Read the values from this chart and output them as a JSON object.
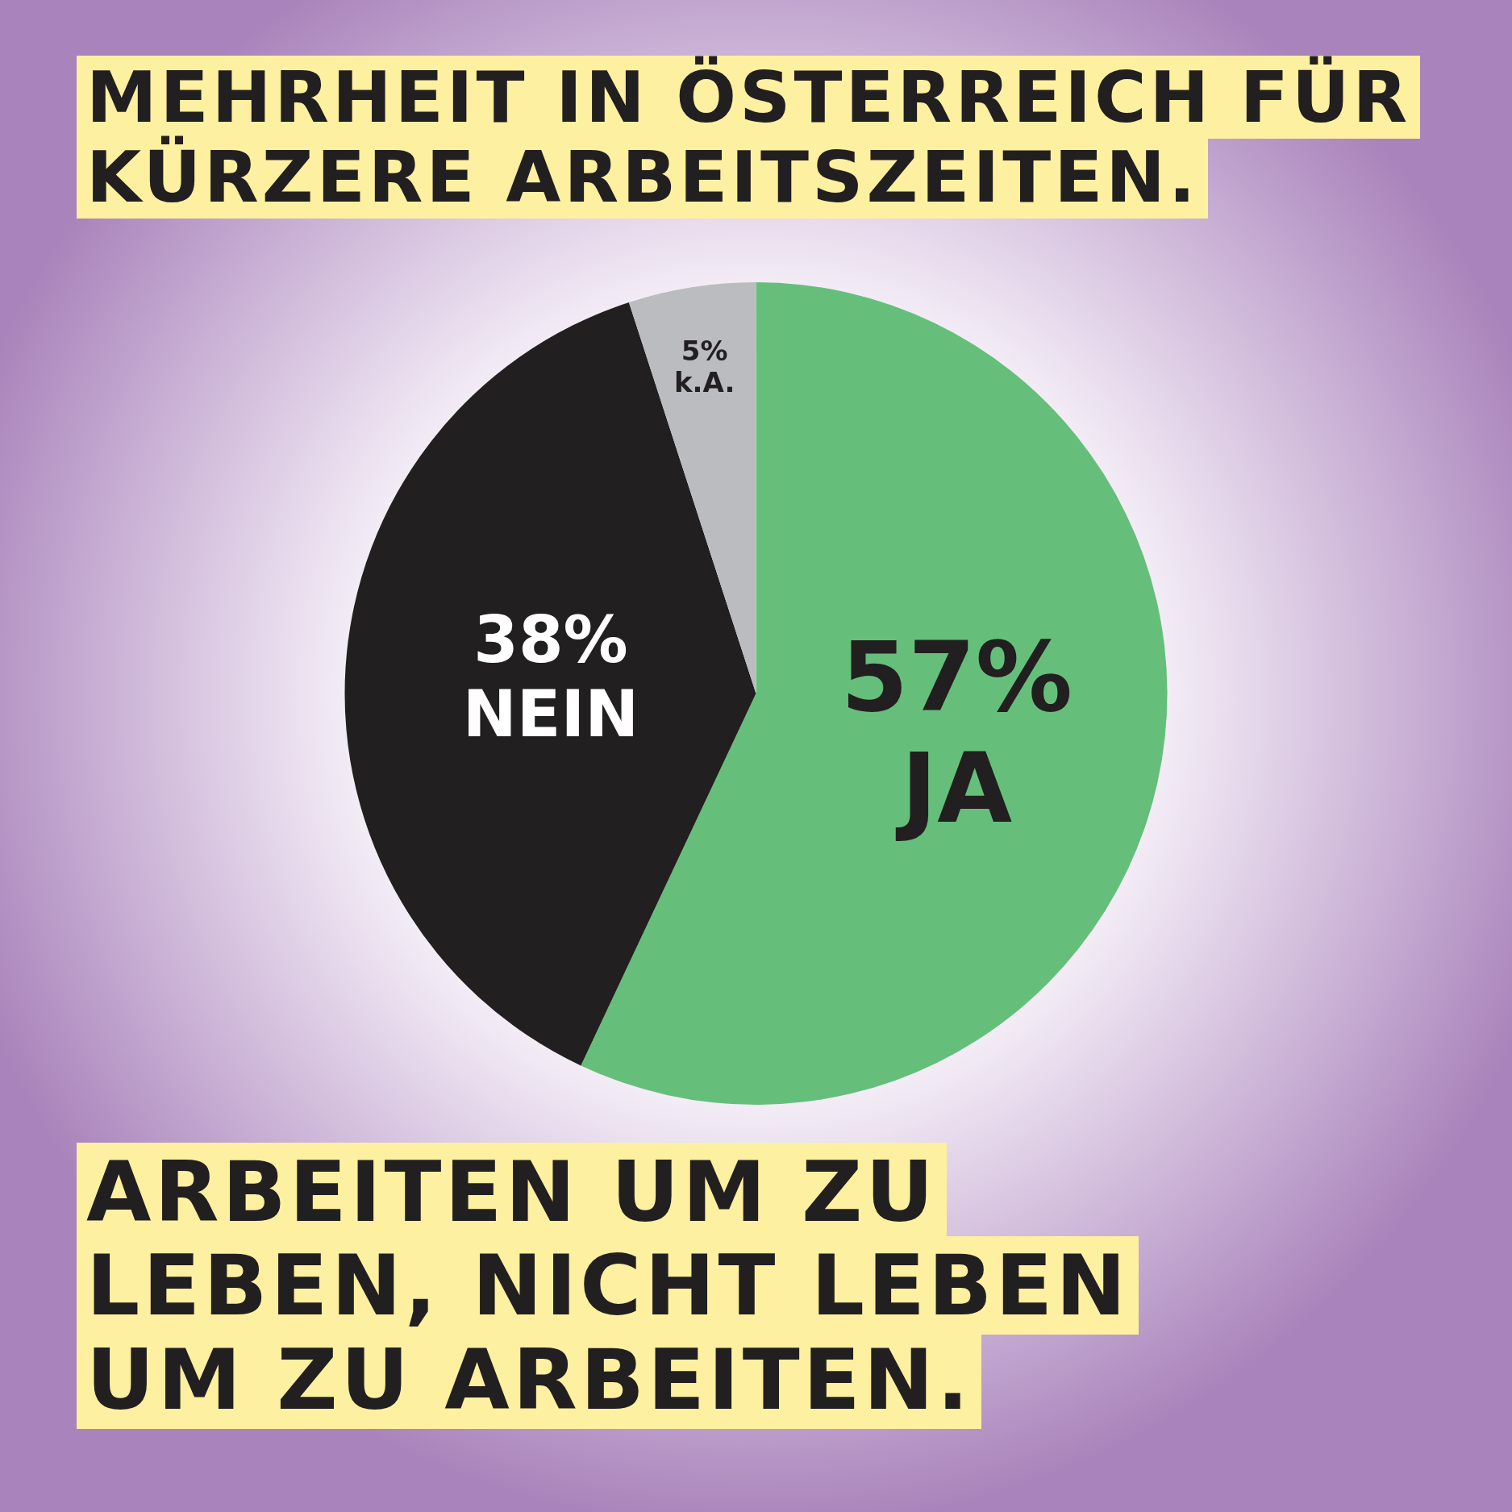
{
  "chart_data": {
    "type": "pie",
    "title": "MEHRHEIT IN ÖSTERREICH FÜR KÜRZERE ARBEITSZEITEN.",
    "categories": [
      "JA",
      "NEIN",
      "k.A."
    ],
    "values": [
      57,
      38,
      5
    ],
    "value_labels": [
      "57%",
      "38%",
      "5%"
    ],
    "colors": [
      "#65bf7b",
      "#221f20",
      "#bbbcc0"
    ],
    "legend": false,
    "annotations": [
      "ARBEITEN UM ZU LEBEN, NICHT LEBEN UM ZU ARBEITEN."
    ]
  }
}
